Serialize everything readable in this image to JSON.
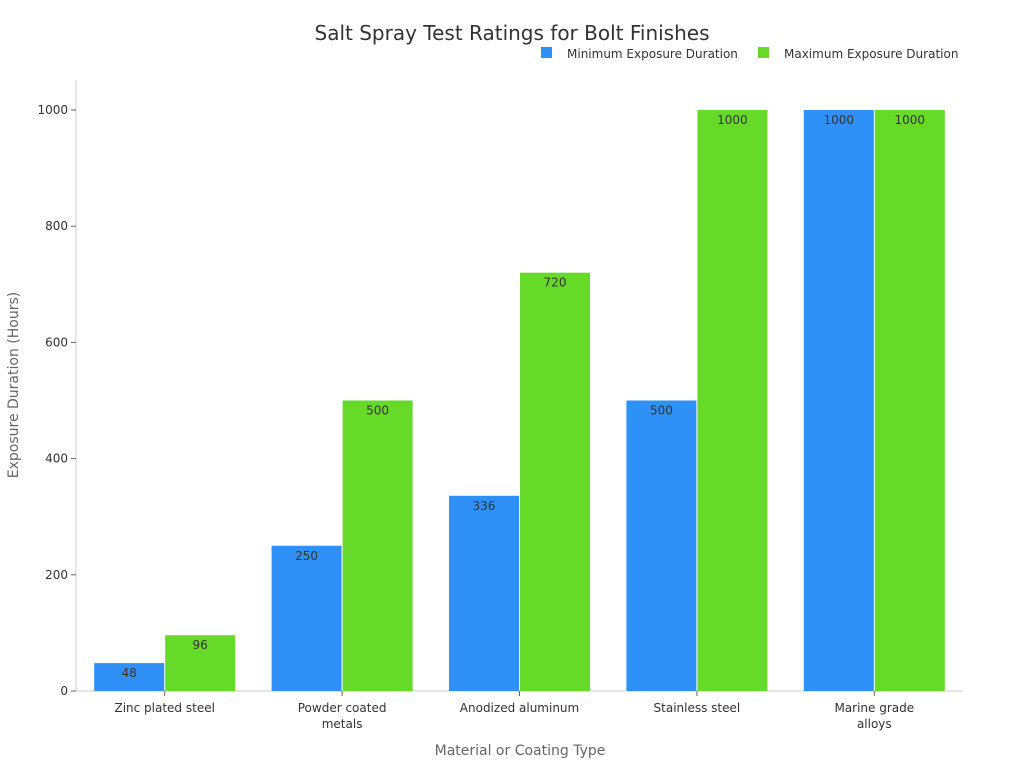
{
  "chart_data": {
    "type": "bar",
    "title": "Salt Spray Test Ratings for Bolt Finishes",
    "xlabel": "Material or Coating Type",
    "ylabel": "Exposure Duration (Hours)",
    "categories": [
      "Zinc plated steel",
      "Powder coated metals",
      "Anodized aluminum",
      "Stainless steel",
      "Marine grade alloys"
    ],
    "series": [
      {
        "name": "Minimum Exposure Duration",
        "color": "#2F91F7",
        "values": [
          48,
          250,
          336,
          500,
          1000
        ]
      },
      {
        "name": "Maximum Exposure Duration",
        "color": "#66D929",
        "values": [
          96,
          500,
          720,
          1000,
          1000
        ]
      }
    ],
    "ylim": [
      0,
      1000
    ],
    "yticks": [
      0,
      200,
      400,
      600,
      800,
      1000
    ],
    "grid": false,
    "legend": "top-right",
    "data_labels": true
  }
}
